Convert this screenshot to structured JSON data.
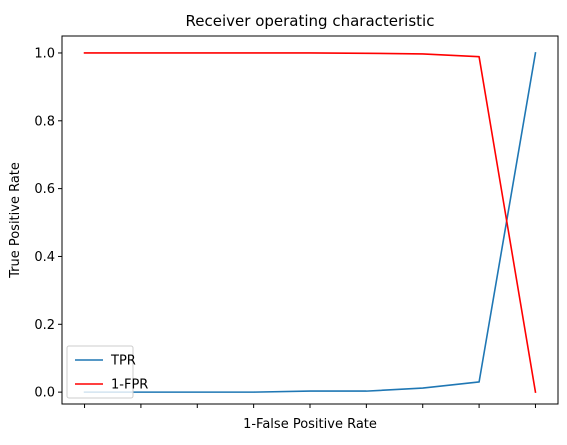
{
  "chart_data": {
    "type": "line",
    "title": "Receiver operating characteristic",
    "xlabel": "1-False Positive Rate",
    "ylabel": "True Positive Rate",
    "x": [
      0,
      1,
      2,
      3,
      4,
      5,
      6,
      7,
      8
    ],
    "xtick_labels": [
      "",
      "",
      "",
      "",
      "",
      "",
      "",
      "",
      ""
    ],
    "ylim": [
      -0.035,
      1.05
    ],
    "yticks": [
      0.0,
      0.2,
      0.4,
      0.6,
      0.8,
      1.0
    ],
    "ytick_labels": [
      "0.0",
      "0.2",
      "0.4",
      "0.6",
      "0.8",
      "1.0"
    ],
    "grid": false,
    "legend_position": "lower-left",
    "series": [
      {
        "name": "TPR",
        "color": "#1f77b4",
        "values": [
          0.0,
          0.0,
          0.0,
          0.0,
          0.003,
          0.003,
          0.012,
          0.03,
          1.0
        ]
      },
      {
        "name": "1-FPR",
        "color": "#ff0000",
        "values": [
          1.0,
          1.0,
          1.0,
          1.0,
          1.0,
          0.999,
          0.997,
          0.989,
          0.0
        ]
      }
    ]
  }
}
